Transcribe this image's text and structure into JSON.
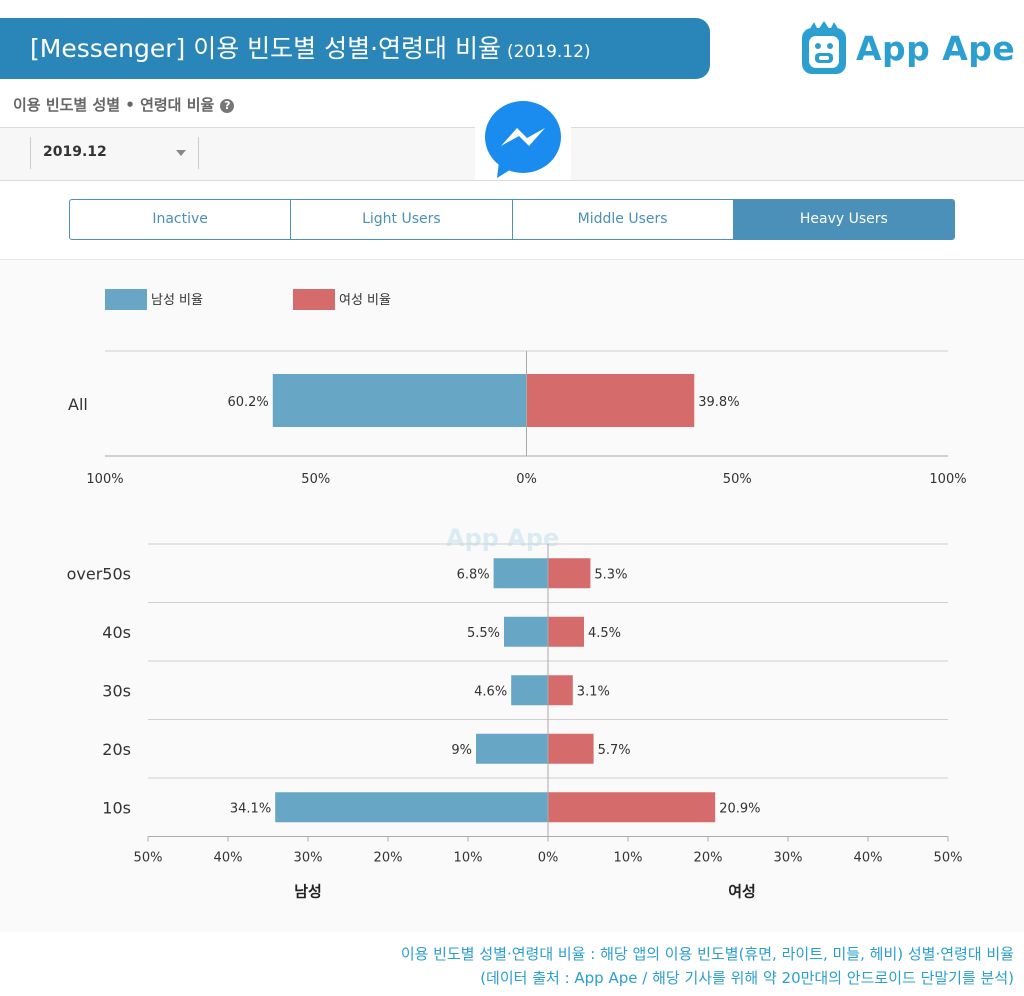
{
  "header": {
    "title": "[Messenger] 이용 빈도별 성별·연령대 비율",
    "date": "(2019.12)",
    "logo_text": "App Ape"
  },
  "subtitle": "이용 빈도별 성별 • 연령대 비율",
  "date_select": {
    "value": "2019.12"
  },
  "tabs": [
    {
      "label": "Inactive",
      "active": false
    },
    {
      "label": "Light Users",
      "active": false
    },
    {
      "label": "Middle Users",
      "active": false
    },
    {
      "label": "Heavy Users",
      "active": true
    }
  ],
  "colors": {
    "male": "#68a6c6",
    "female": "#d66b6b",
    "accent": "#2a86b8"
  },
  "chart_data": [
    {
      "type": "bar",
      "orientation": "horizontal-diverging",
      "categories": [
        "All"
      ],
      "series": [
        {
          "name": "남성 비율",
          "values": [
            60.2
          ]
        },
        {
          "name": "여성 비율",
          "values": [
            39.8
          ]
        }
      ],
      "value_labels": {
        "male": [
          "60.2%"
        ],
        "female": [
          "39.8%"
        ]
      },
      "legend": [
        "남성 비율",
        "여성 비율"
      ],
      "legend_position": "top-left",
      "xlim": [
        -100,
        100
      ],
      "xticks": [
        "100%",
        "50%",
        "0%",
        "50%",
        "100%"
      ]
    },
    {
      "type": "bar",
      "orientation": "horizontal-diverging",
      "categories": [
        "over50s",
        "40s",
        "30s",
        "20s",
        "10s"
      ],
      "series": [
        {
          "name": "남성",
          "values": [
            6.8,
            5.5,
            4.6,
            9,
            34.1
          ]
        },
        {
          "name": "여성",
          "values": [
            5.3,
            4.5,
            3.1,
            5.7,
            20.9
          ]
        }
      ],
      "value_labels": {
        "male": [
          "6.8%",
          "5.5%",
          "4.6%",
          "9%",
          "34.1%"
        ],
        "female": [
          "5.3%",
          "4.5%",
          "3.1%",
          "5.7%",
          "20.9%"
        ]
      },
      "xlim": [
        -50,
        50
      ],
      "xticks": [
        "50%",
        "40%",
        "30%",
        "20%",
        "10%",
        "0%",
        "10%",
        "20%",
        "30%",
        "40%",
        "50%"
      ],
      "xlabel_left": "남성",
      "xlabel_right": "여성"
    }
  ],
  "footer": {
    "line1": "이용 빈도별 성별·연령대 비율 : 해당 앱의 이용 빈도별(휴면, 라이트, 미들, 헤비) 성별·연령대 비율",
    "line2": "(데이터 출처 : App Ape / 해당 기사를 위해 약 20만대의 안드로이드 단말기를 분석)"
  }
}
